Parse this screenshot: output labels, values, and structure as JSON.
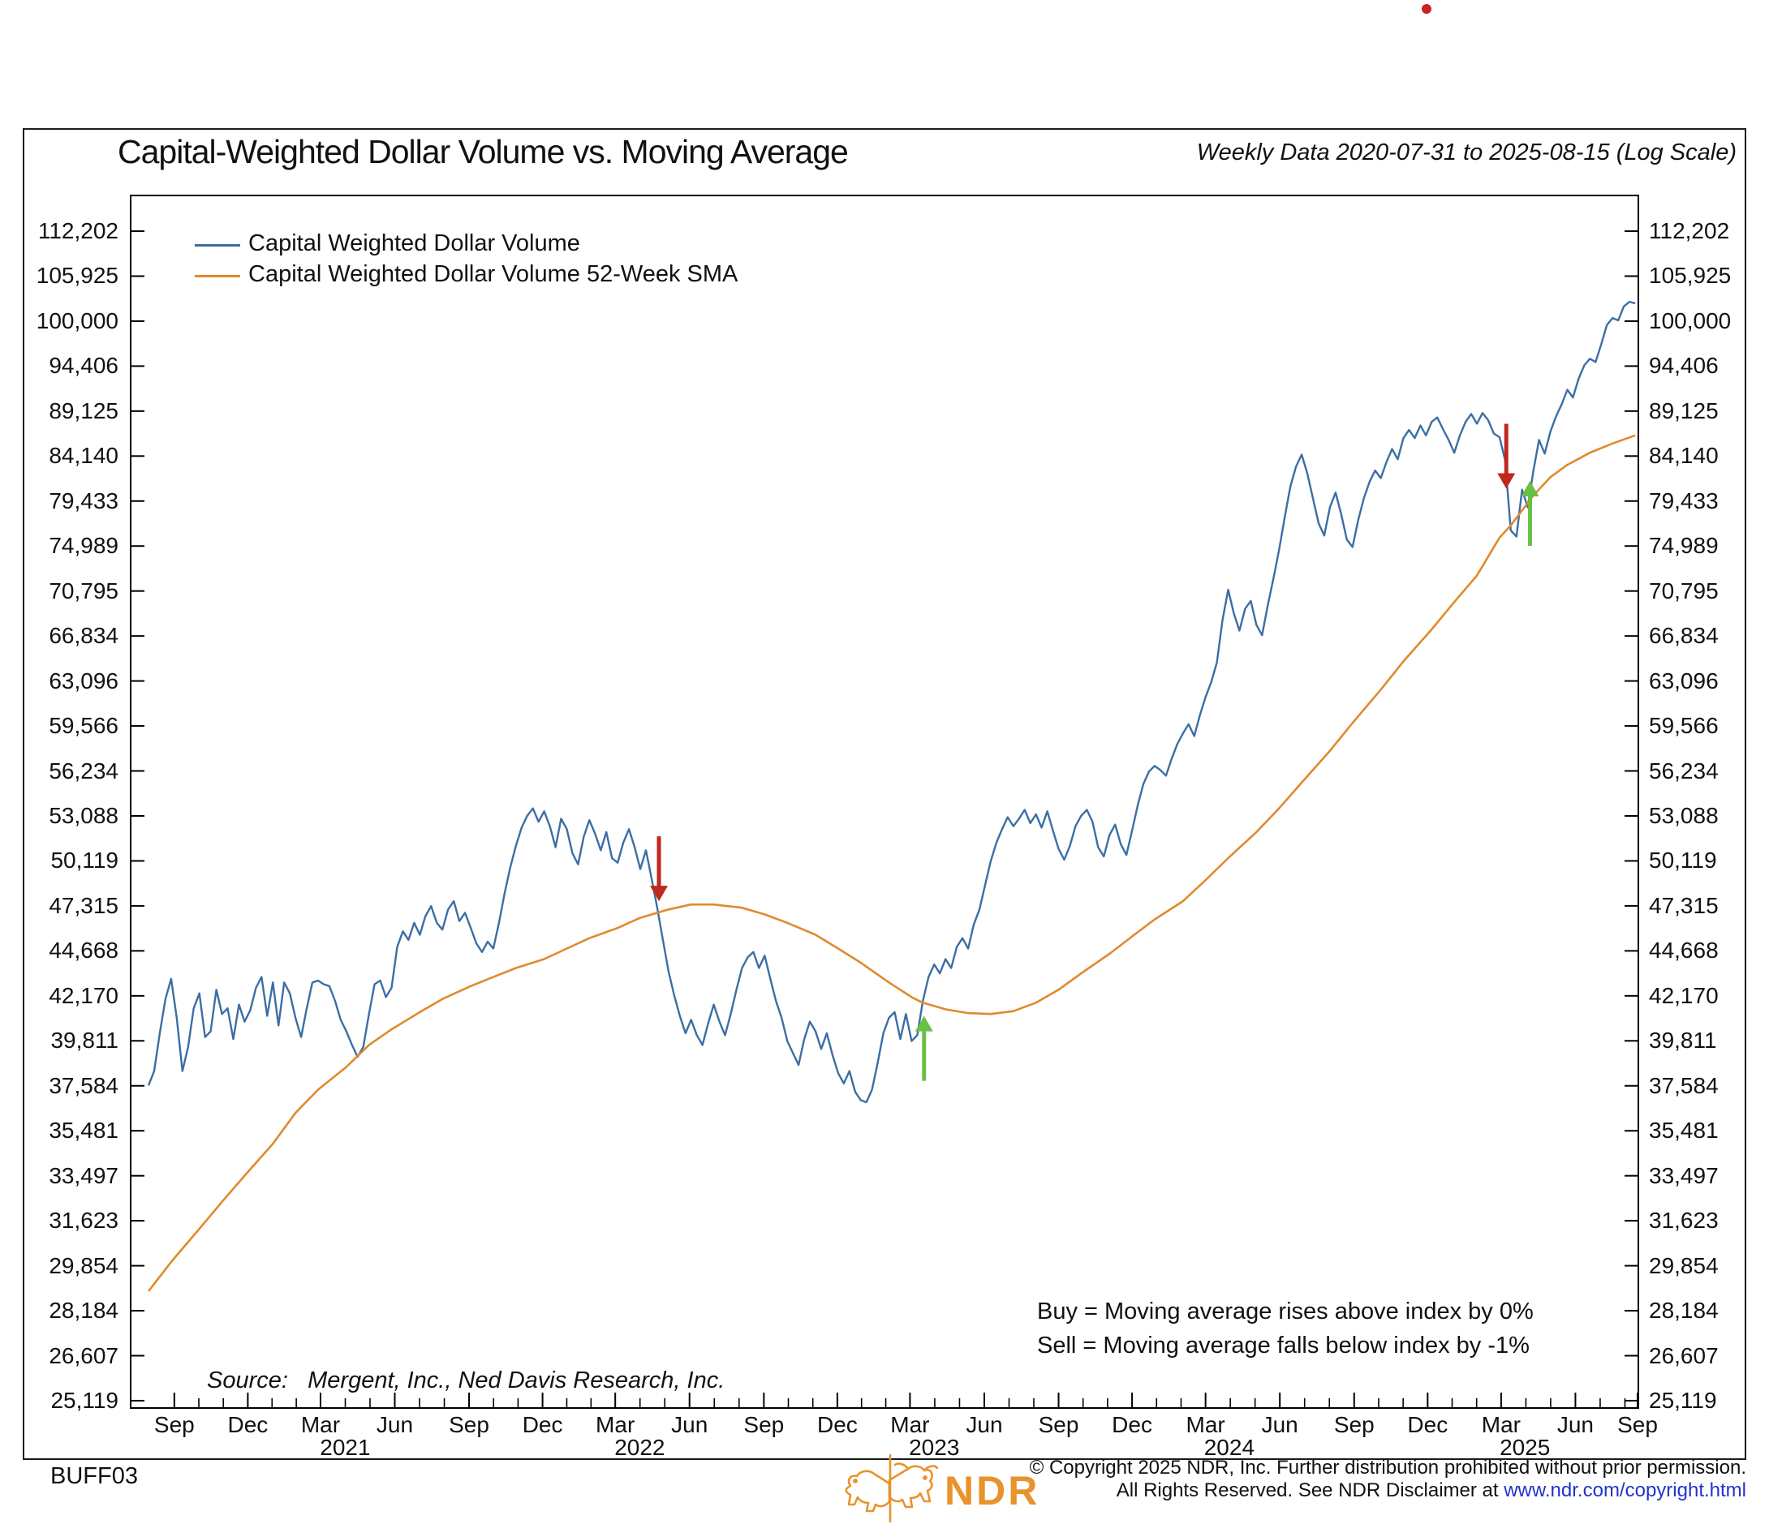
{
  "page": {
    "code_label": "BUFF03",
    "red_dot_color": "#cc2222"
  },
  "header": {
    "title": "Capital-Weighted Dollar Volume vs. Moving Average",
    "subtitle": "Weekly Data 2020-07-31 to 2025-08-15 (Log Scale)"
  },
  "legend": [
    {
      "label": "Capital Weighted Dollar Volume",
      "color": "#3c6ea5"
    },
    {
      "label": "Capital Weighted Dollar Volume 52-Week SMA",
      "color": "#e08a2e"
    }
  ],
  "annotations": {
    "buy_rule": "Buy = Moving average rises above index by 0%",
    "sell_rule": "Sell = Moving average falls below index by -1%",
    "source_prefix": "Source:",
    "source_text": "Mergent, Inc., Ned Davis Research, Inc."
  },
  "footer": {
    "copyright_line1": "© Copyright 2025 NDR, Inc. Further distribution prohibited without prior permission.",
    "copyright_line2_prefix": "All Rights Reserved. See NDR Disclaimer at ",
    "copyright_link": "www.ndr.com/copyright.html",
    "link_color": "#2233cc",
    "logo_text": "NDR",
    "logo_color": "#e8932c"
  },
  "chart_data": {
    "type": "line",
    "title": "Capital-Weighted Dollar Volume vs. Moving Average",
    "subtitle": "Weekly Data 2020-07-31 to 2025-08-15 (Log Scale)",
    "x_range": {
      "start": "2020-07-31",
      "end": "2025-08-15",
      "unit": "weeks",
      "total_weeks": 263
    },
    "y_axis": {
      "scale": "log",
      "tick_values": [
        112202,
        105925,
        100000,
        94406,
        89125,
        84140,
        79433,
        74989,
        70795,
        66834,
        63096,
        59566,
        56234,
        53088,
        50119,
        47315,
        44668,
        42170,
        39811,
        37584,
        35481,
        33497,
        31623,
        29854,
        28184,
        26607,
        25119
      ],
      "labels_on_both_sides": true
    },
    "x_axis": {
      "major_ticks": [
        {
          "label": "Sep",
          "week": 4.57
        },
        {
          "label": "Dec",
          "week": 17.57
        },
        {
          "label": "Mar",
          "week": 30.43
        },
        {
          "label": "Jun",
          "week": 43.57
        },
        {
          "label": "Sep",
          "week": 56.71
        },
        {
          "label": "Dec",
          "week": 69.71
        },
        {
          "label": "Mar",
          "week": 82.57
        },
        {
          "label": "Jun",
          "week": 95.71
        },
        {
          "label": "Sep",
          "week": 108.86
        },
        {
          "label": "Dec",
          "week": 121.86
        },
        {
          "label": "Mar",
          "week": 134.71
        },
        {
          "label": "Jun",
          "week": 147.86
        },
        {
          "label": "Sep",
          "week": 161.0
        },
        {
          "label": "Dec",
          "week": 174.0
        },
        {
          "label": "Mar",
          "week": 187.0
        },
        {
          "label": "Jun",
          "week": 200.14
        },
        {
          "label": "Sep",
          "week": 213.29
        },
        {
          "label": "Dec",
          "week": 226.29
        },
        {
          "label": "Mar",
          "week": 239.29
        },
        {
          "label": "Jun",
          "week": 252.43
        },
        {
          "label": "Sep",
          "week": 265.57
        }
      ],
      "year_labels": [
        {
          "label": "2021",
          "week": 34.8
        },
        {
          "label": "2022",
          "week": 86.9
        },
        {
          "label": "2023",
          "week": 139.0
        },
        {
          "label": "2024",
          "week": 191.2
        },
        {
          "label": "2025",
          "week": 243.5
        }
      ],
      "minor_ticks_per_quarter": 2
    },
    "series": [
      {
        "name": "Capital Weighted Dollar Volume",
        "color": "#3c6ea5",
        "sampling": "weekly, week 0 = 2020-07-31",
        "values_weekly": [
          37600,
          38300,
          40200,
          42000,
          43100,
          41000,
          38300,
          39500,
          41500,
          42300,
          40000,
          40300,
          42500,
          41200,
          41500,
          39900,
          41700,
          40800,
          41400,
          42600,
          43200,
          41100,
          42900,
          40600,
          42900,
          42300,
          41000,
          40000,
          41500,
          42900,
          43000,
          42800,
          42700,
          41900,
          40900,
          40300,
          39600,
          39000,
          39500,
          41200,
          42800,
          43000,
          42100,
          42600,
          44900,
          45800,
          45300,
          46300,
          45600,
          46700,
          47300,
          46300,
          45900,
          47100,
          47600,
          46400,
          46900,
          46000,
          45100,
          44600,
          45200,
          44800,
          46300,
          48100,
          49700,
          51100,
          52300,
          53100,
          53600,
          52700,
          53400,
          52400,
          51000,
          52900,
          52200,
          50600,
          49900,
          51700,
          52800,
          51900,
          50800,
          52000,
          50300,
          50000,
          51300,
          52200,
          51000,
          49600,
          50800,
          49000,
          47200,
          45300,
          43500,
          42200,
          41100,
          40200,
          40900,
          40100,
          39600,
          40700,
          41700,
          40800,
          40100,
          41200,
          42500,
          43700,
          44300,
          44600,
          43700,
          44400,
          43100,
          41900,
          41000,
          39800,
          39200,
          38600,
          39900,
          40800,
          40300,
          39400,
          40200,
          39100,
          38200,
          37700,
          38300,
          37300,
          36900,
          36800,
          37400,
          38700,
          40200,
          41000,
          41300,
          39900,
          41200,
          39800,
          40100,
          41900,
          43200,
          43900,
          43400,
          44200,
          43700,
          44900,
          45400,
          44800,
          46200,
          47100,
          48600,
          50100,
          51300,
          52200,
          53000,
          52400,
          52900,
          53500,
          52600,
          53200,
          52300,
          53400,
          52100,
          50900,
          50200,
          51100,
          52400,
          53100,
          53500,
          52700,
          51000,
          50400,
          51800,
          52500,
          51200,
          50500,
          52100,
          53800,
          55300,
          56200,
          56600,
          56300,
          55900,
          57100,
          58200,
          59000,
          59700,
          58800,
          60400,
          61800,
          63000,
          64600,
          68200,
          70900,
          68800,
          67300,
          69200,
          69900,
          67800,
          66900,
          69500,
          71900,
          74600,
          77800,
          80900,
          83000,
          84300,
          82300,
          79700,
          77200,
          76000,
          78800,
          80300,
          78100,
          75600,
          74900,
          77500,
          79700,
          81400,
          82600,
          81800,
          83500,
          84900,
          83800,
          86100,
          87000,
          86100,
          87500,
          86400,
          87900,
          88400,
          87100,
          85900,
          84500,
          86400,
          87900,
          88800,
          87700,
          88900,
          88100,
          86600,
          86200,
          83700,
          76500,
          75900,
          80600,
          78800,
          82600,
          85900,
          84400,
          86800,
          88500,
          89900,
          91600,
          90700,
          92900,
          94500,
          95300,
          94900,
          97100,
          99500,
          100400,
          100100,
          101900,
          102500,
          102300
        ]
      },
      {
        "name": "Capital Weighted Dollar Volume 52-Week SMA",
        "color": "#e08a2e",
        "sampling": "anchor points [week, value]",
        "points": [
          [
            0,
            28900
          ],
          [
            4,
            30000
          ],
          [
            9,
            31300
          ],
          [
            13,
            32400
          ],
          [
            17,
            33500
          ],
          [
            22,
            34900
          ],
          [
            26,
            36300
          ],
          [
            30,
            37400
          ],
          [
            35,
            38500
          ],
          [
            39,
            39600
          ],
          [
            43,
            40400
          ],
          [
            48,
            41300
          ],
          [
            52,
            42000
          ],
          [
            57,
            42700
          ],
          [
            61,
            43200
          ],
          [
            65,
            43700
          ],
          [
            70,
            44200
          ],
          [
            74,
            44800
          ],
          [
            78,
            45400
          ],
          [
            83,
            46000
          ],
          [
            87,
            46600
          ],
          [
            92,
            47100
          ],
          [
            96,
            47400
          ],
          [
            100,
            47400
          ],
          [
            105,
            47200
          ],
          [
            109,
            46800
          ],
          [
            113,
            46300
          ],
          [
            118,
            45600
          ],
          [
            122,
            44800
          ],
          [
            126,
            44000
          ],
          [
            131,
            42900
          ],
          [
            135,
            42100
          ],
          [
            137,
            41800
          ],
          [
            141,
            41450
          ],
          [
            145,
            41250
          ],
          [
            149,
            41200
          ],
          [
            153,
            41350
          ],
          [
            157,
            41800
          ],
          [
            161,
            42500
          ],
          [
            165,
            43400
          ],
          [
            170,
            44500
          ],
          [
            174,
            45500
          ],
          [
            178,
            46500
          ],
          [
            183,
            47600
          ],
          [
            187,
            48900
          ],
          [
            191,
            50300
          ],
          [
            196,
            52000
          ],
          [
            200,
            53600
          ],
          [
            204,
            55400
          ],
          [
            209,
            57700
          ],
          [
            213,
            59800
          ],
          [
            218,
            62400
          ],
          [
            222,
            64700
          ],
          [
            227,
            67400
          ],
          [
            231,
            69800
          ],
          [
            235,
            72200
          ],
          [
            239,
            75800
          ],
          [
            241,
            77000
          ],
          [
            245,
            80000
          ],
          [
            248,
            81900
          ],
          [
            251,
            83200
          ],
          [
            255,
            84500
          ],
          [
            259,
            85500
          ],
          [
            263,
            86400
          ]
        ]
      }
    ],
    "signals": [
      {
        "type": "sell",
        "week": 90.3,
        "value": 47600,
        "color": "#c0281e"
      },
      {
        "type": "buy",
        "week": 137.2,
        "value": 41100,
        "color": "#6abf45"
      },
      {
        "type": "sell",
        "week": 240.2,
        "value": 80700,
        "color": "#c0281e"
      },
      {
        "type": "buy",
        "week": 244.4,
        "value": 81500,
        "color": "#6abf45"
      }
    ],
    "layout": {
      "grid": false,
      "legend_position": "top-left-inside",
      "log_base_tick_ratio": 1.0593
    }
  }
}
